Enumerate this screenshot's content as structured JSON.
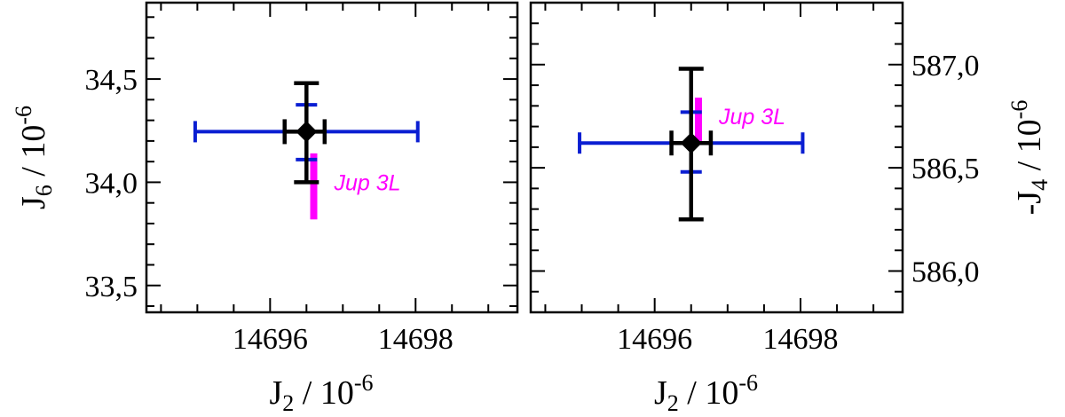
{
  "chart_data": [
    {
      "type": "scatter",
      "title": "",
      "xlabel": "J2 / 10^-6",
      "ylabel": "J6 / 10^-6",
      "xlabel_parts": {
        "main": "J",
        "sub": "2",
        "rest": "  / 10",
        "sup": "-6"
      },
      "ylabel_parts": {
        "main": "J",
        "sub": "6",
        "rest": " / 10",
        "sup": "-6"
      },
      "xlim": [
        14694.3,
        14699.4
      ],
      "ylim": [
        33.37,
        34.87
      ],
      "xticks": [
        14696,
        14698
      ],
      "xtick_labels": [
        "14696",
        "14698"
      ],
      "yticks": [
        33.5,
        34.0,
        34.5
      ],
      "ytick_labels": [
        "33,5",
        "34,0",
        "34,5"
      ],
      "x_minor_step": 0.5,
      "y_minor_step": 0.1,
      "y_axis_side": "left",
      "grid": false,
      "errorbars": [
        {
          "name": "",
          "color": "#0a1ed2",
          "cx": 14696.5,
          "cy": 34.245,
          "xerr": [
            14694.97,
            14698.03
          ],
          "yerr": [
            34.11,
            34.375
          ],
          "marker": false
        },
        {
          "name": "",
          "color": "#000000",
          "cx": 14696.5,
          "cy": 34.245,
          "xerr": [
            14696.2,
            14696.75
          ],
          "yerr": [
            34.0,
            34.48
          ],
          "marker": true
        }
      ],
      "bar": {
        "color": "#ff00ff",
        "x": 14696.6,
        "y": [
          33.82,
          34.14
        ]
      },
      "annotation": {
        "text": "Jup 3L",
        "x": 14696.88,
        "y": 34.0,
        "color": "#ff00ff"
      }
    },
    {
      "type": "scatter",
      "title": "",
      "xlabel": "J2 / 10^-6",
      "ylabel": "-J4 / 10^-6",
      "xlabel_parts": {
        "main": "J",
        "sub": "2",
        "rest": "  / 10",
        "sup": "-6"
      },
      "ylabel_parts": {
        "main": "-J",
        "sub": "4",
        "rest": " / 10",
        "sup": "-6"
      },
      "xlim": [
        14694.3,
        14699.4
      ],
      "ylim": [
        585.8,
        587.3
      ],
      "xticks": [
        14696,
        14698
      ],
      "xtick_labels": [
        "14696",
        "14698"
      ],
      "yticks": [
        586.0,
        586.5,
        587.0
      ],
      "ytick_labels": [
        "586,0",
        "586,5",
        "587,0"
      ],
      "x_minor_step": 0.5,
      "y_minor_step": 0.1,
      "y_axis_side": "right",
      "grid": false,
      "errorbars": [
        {
          "name": "",
          "color": "#0a1ed2",
          "cx": 14696.5,
          "cy": 586.62,
          "xerr": [
            14694.97,
            14698.03
          ],
          "yerr": [
            586.48,
            586.77
          ],
          "marker": false
        },
        {
          "name": "",
          "color": "#000000",
          "cx": 14696.5,
          "cy": 586.62,
          "xerr": [
            14696.23,
            14696.77
          ],
          "yerr": [
            586.25,
            586.98
          ],
          "marker": true
        }
      ],
      "bar": {
        "color": "#ff00ff",
        "x": 14696.6,
        "y": [
          586.63,
          586.84
        ]
      },
      "annotation": {
        "text": "Jup 3L",
        "x": 14696.88,
        "y": 586.75,
        "color": "#ff00ff"
      }
    }
  ]
}
